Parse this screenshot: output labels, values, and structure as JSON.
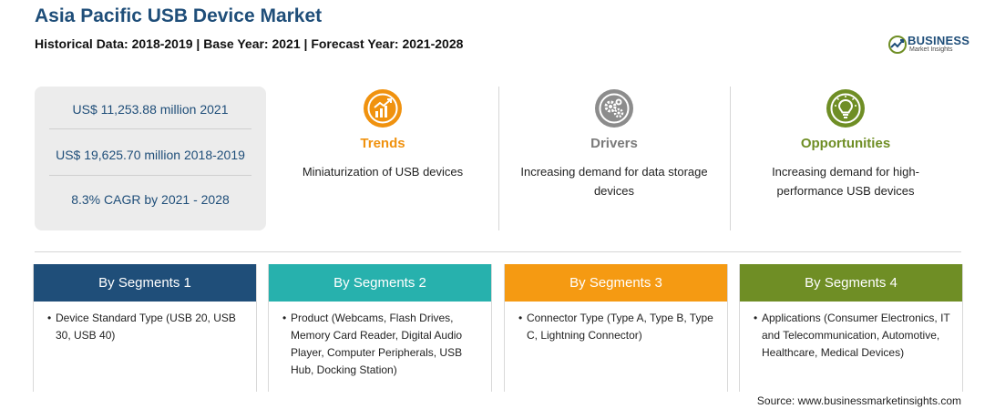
{
  "header": {
    "title": "Asia Pacific USB Device Market",
    "subtitle": "Historical Data: 2018-2019 | Base Year: 2021 | Forecast Year: 2021-2028"
  },
  "logo": {
    "word": "BUSINESS",
    "sub": "Market Insights",
    "colors": {
      "primary": "#1f4e79",
      "accent": "#6f8e25"
    }
  },
  "stats": [
    "US$ 11,253.88 million 2021",
    "US$ 19,625.70 million 2018-2019",
    "8.3% CAGR by 2021 - 2028"
  ],
  "highlights": {
    "trends": {
      "title": "Trends",
      "text": "Miniaturization of USB devices",
      "icon": "trend-chart-icon",
      "color": "#f0920f"
    },
    "drivers": {
      "title": "Drivers",
      "text": "Increasing demand for data storage devices",
      "icon": "gears-icon",
      "color": "#7a7a7a"
    },
    "opportunities": {
      "title": "Opportunities",
      "text": "Increasing demand for high-performance USB devices",
      "icon": "lightbulb-icon",
      "color": "#6f8e25"
    }
  },
  "segments": [
    {
      "title": "By Segments 1",
      "text": "Device Standard Type (USB 20, USB 30, USB 40)",
      "color": "#1f4e79"
    },
    {
      "title": "By Segments 2",
      "text": "Product (Webcams, Flash Drives, Memory Card Reader, Digital Audio Player, Computer Peripherals, USB Hub, Docking Station)",
      "color": "#27b1ad"
    },
    {
      "title": "By Segments 3",
      "text": "Connector Type (Type A, Type B, Type C, Lightning Connector)",
      "color": "#f59a12"
    },
    {
      "title": "By Segments 4",
      "text": "Applications (Consumer Electronics, IT and Telecommunication, Automotive, Healthcare, Medical Devices)",
      "color": "#6f8e25"
    }
  ],
  "footer": {
    "source": "Source: www.businessmarketinsights.com"
  }
}
